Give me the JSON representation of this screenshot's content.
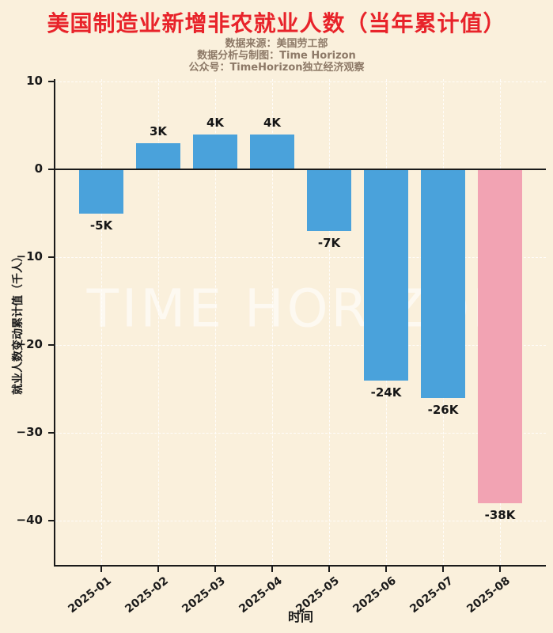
{
  "header": {
    "title": "美国制造业新增非农就业人数（当年累计值）",
    "subtitle_lines": [
      "数据来源：美国劳工部",
      "数据分析与制图：Time Horizon",
      "公众号：TimeHorizon独立经济观察"
    ]
  },
  "watermark": "TIME HORIZON",
  "chart_data": {
    "type": "bar",
    "title": "美国制造业新增非农就业人数（当年累计值）",
    "categories": [
      "2025-01",
      "2025-02",
      "2025-03",
      "2025-04",
      "2025-05",
      "2025-06",
      "2025-07",
      "2025-08"
    ],
    "values": [
      -5,
      3,
      4,
      4,
      -7,
      -24,
      -26,
      -38
    ],
    "bar_labels": [
      "-5K",
      "3K",
      "4K",
      "4K",
      "-7K",
      "-24K",
      "-26K",
      "-38K"
    ],
    "bar_colors": [
      "#4aa2db",
      "#4aa2db",
      "#4aa2db",
      "#4aa2db",
      "#4aa2db",
      "#4aa2db",
      "#4aa2db",
      "#f2a3b3"
    ],
    "xlabel": "时间",
    "ylabel": "就业人数变动累计值（千人）",
    "ylim": [
      -45,
      10.3
    ],
    "yticks": [
      10,
      0,
      -10,
      -20,
      -30,
      -40
    ],
    "ytick_labels": [
      "10",
      "0",
      "−10",
      "−20",
      "−30",
      "−40"
    ],
    "grid": true,
    "legend": "none",
    "colors": {
      "background": "#faf0dc",
      "title_red": "#e8232a",
      "subtitle_brown": "#8d7967",
      "axis_text": "#1a1a1a",
      "bar_blue": "#4aa2db",
      "bar_pink": "#f2a3b3",
      "watermark_white": "#ffffff"
    }
  }
}
